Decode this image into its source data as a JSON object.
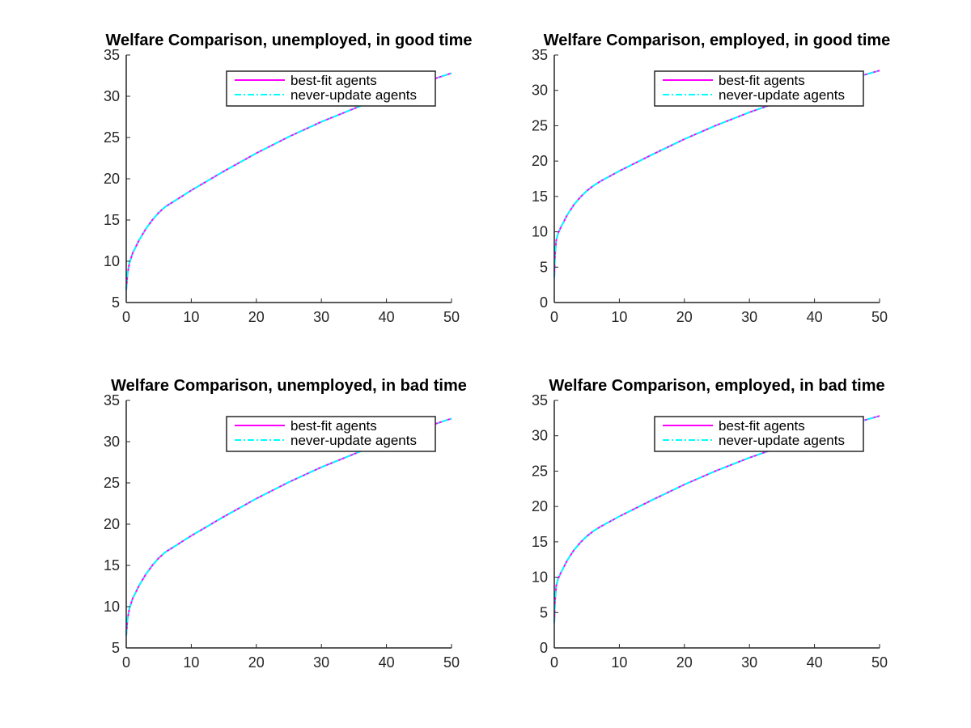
{
  "figure": {
    "background": "#ffffff"
  },
  "chart_data": [
    {
      "type": "line",
      "title": "Welfare Comparison, unemployed, in good time",
      "xlabel": "",
      "ylabel": "",
      "xlim": [
        0,
        50
      ],
      "ylim": [
        5,
        35
      ],
      "xticks": [
        0,
        10,
        20,
        30,
        40,
        50
      ],
      "yticks": [
        5,
        10,
        15,
        20,
        25,
        30,
        35
      ],
      "grid": false,
      "legend": {
        "position": "top-right"
      },
      "series": [
        {
          "name": "best-fit agents",
          "color": "#ff00ff",
          "style": "solid",
          "x": [
            0,
            0.2,
            0.5,
            1,
            2,
            3,
            4,
            5,
            6,
            7,
            10,
            15,
            20,
            25,
            30,
            35,
            40,
            45,
            50
          ],
          "y": [
            6.5,
            8.5,
            9.8,
            11.0,
            12.6,
            13.9,
            15.0,
            15.9,
            16.6,
            17.1,
            18.6,
            20.9,
            23.1,
            25.1,
            26.9,
            28.5,
            30.1,
            31.5,
            32.8
          ]
        },
        {
          "name": "never-update agents",
          "color": "#00ffff",
          "style": "dash-dot",
          "x": [
            0,
            0.2,
            0.5,
            1,
            2,
            3,
            4,
            5,
            6,
            7,
            10,
            15,
            20,
            25,
            30,
            35,
            40,
            45,
            50
          ],
          "y": [
            6.5,
            8.5,
            9.8,
            11.0,
            12.6,
            13.9,
            15.0,
            15.9,
            16.6,
            17.1,
            18.6,
            20.9,
            23.1,
            25.1,
            26.9,
            28.5,
            30.1,
            31.5,
            32.8
          ]
        }
      ]
    },
    {
      "type": "line",
      "title": "Welfare Comparison, employed, in good time",
      "xlabel": "",
      "ylabel": "",
      "xlim": [
        0,
        50
      ],
      "ylim": [
        0,
        35
      ],
      "xticks": [
        0,
        10,
        20,
        30,
        40,
        50
      ],
      "yticks": [
        0,
        5,
        10,
        15,
        20,
        25,
        30,
        35
      ],
      "grid": false,
      "legend": {
        "position": "top-right"
      },
      "series": [
        {
          "name": "best-fit agents",
          "color": "#ff00ff",
          "style": "solid",
          "x": [
            0,
            0.1,
            0.3,
            0.6,
            1,
            2,
            3,
            4,
            5,
            6,
            7,
            10,
            15,
            20,
            25,
            30,
            35,
            40,
            45,
            50
          ],
          "y": [
            3.5,
            6.5,
            8.8,
            9.8,
            10.6,
            12.4,
            13.8,
            14.9,
            15.8,
            16.5,
            17.1,
            18.6,
            20.9,
            23.1,
            25.1,
            26.9,
            28.5,
            30.1,
            31.5,
            32.8
          ]
        },
        {
          "name": "never-update agents",
          "color": "#00ffff",
          "style": "dash-dot",
          "x": [
            0,
            0.1,
            0.3,
            0.6,
            1,
            2,
            3,
            4,
            5,
            6,
            7,
            10,
            15,
            20,
            25,
            30,
            35,
            40,
            45,
            50
          ],
          "y": [
            3.5,
            6.5,
            8.8,
            9.8,
            10.6,
            12.4,
            13.8,
            14.9,
            15.8,
            16.5,
            17.1,
            18.6,
            20.9,
            23.1,
            25.1,
            26.9,
            28.5,
            30.1,
            31.5,
            32.8
          ]
        }
      ]
    },
    {
      "type": "line",
      "title": "Welfare Comparison, unemployed, in bad time",
      "xlabel": "",
      "ylabel": "",
      "xlim": [
        0,
        50
      ],
      "ylim": [
        5,
        35
      ],
      "xticks": [
        0,
        10,
        20,
        30,
        40,
        50
      ],
      "yticks": [
        5,
        10,
        15,
        20,
        25,
        30,
        35
      ],
      "grid": false,
      "legend": {
        "position": "top-right"
      },
      "series": [
        {
          "name": "best-fit agents",
          "color": "#ff00ff",
          "style": "solid",
          "x": [
            0,
            0.2,
            0.5,
            1,
            2,
            3,
            4,
            5,
            6,
            7,
            10,
            15,
            20,
            25,
            30,
            35,
            40,
            45,
            50
          ],
          "y": [
            6.5,
            8.5,
            9.8,
            11.0,
            12.6,
            13.9,
            15.0,
            15.9,
            16.6,
            17.1,
            18.6,
            20.9,
            23.1,
            25.1,
            26.9,
            28.5,
            30.1,
            31.5,
            32.8
          ]
        },
        {
          "name": "never-update agents",
          "color": "#00ffff",
          "style": "dash-dot",
          "x": [
            0,
            0.2,
            0.5,
            1,
            2,
            3,
            4,
            5,
            6,
            7,
            10,
            15,
            20,
            25,
            30,
            35,
            40,
            45,
            50
          ],
          "y": [
            6.5,
            8.5,
            9.8,
            11.0,
            12.6,
            13.9,
            15.0,
            15.9,
            16.6,
            17.1,
            18.6,
            20.9,
            23.1,
            25.1,
            26.9,
            28.5,
            30.1,
            31.5,
            32.8
          ]
        }
      ]
    },
    {
      "type": "line",
      "title": "Welfare Comparison, employed, in bad time",
      "xlabel": "",
      "ylabel": "",
      "xlim": [
        0,
        50
      ],
      "ylim": [
        0,
        35
      ],
      "xticks": [
        0,
        10,
        20,
        30,
        40,
        50
      ],
      "yticks": [
        0,
        5,
        10,
        15,
        20,
        25,
        30,
        35
      ],
      "grid": false,
      "legend": {
        "position": "top-right"
      },
      "series": [
        {
          "name": "best-fit agents",
          "color": "#ff00ff",
          "style": "solid",
          "x": [
            0,
            0.1,
            0.3,
            0.6,
            1,
            2,
            3,
            4,
            5,
            6,
            7,
            10,
            15,
            20,
            25,
            30,
            35,
            40,
            45,
            50
          ],
          "y": [
            3.5,
            6.5,
            8.8,
            9.8,
            10.6,
            12.4,
            13.8,
            14.9,
            15.8,
            16.5,
            17.1,
            18.6,
            20.9,
            23.1,
            25.1,
            26.9,
            28.5,
            30.1,
            31.5,
            32.8
          ]
        },
        {
          "name": "never-update agents",
          "color": "#00ffff",
          "style": "dash-dot",
          "x": [
            0,
            0.1,
            0.3,
            0.6,
            1,
            2,
            3,
            4,
            5,
            6,
            7,
            10,
            15,
            20,
            25,
            30,
            35,
            40,
            45,
            50
          ],
          "y": [
            3.5,
            6.5,
            8.8,
            9.8,
            10.6,
            12.4,
            13.8,
            14.9,
            15.8,
            16.5,
            17.1,
            18.6,
            20.9,
            23.1,
            25.1,
            26.9,
            28.5,
            30.1,
            31.5,
            32.8
          ]
        }
      ]
    }
  ]
}
